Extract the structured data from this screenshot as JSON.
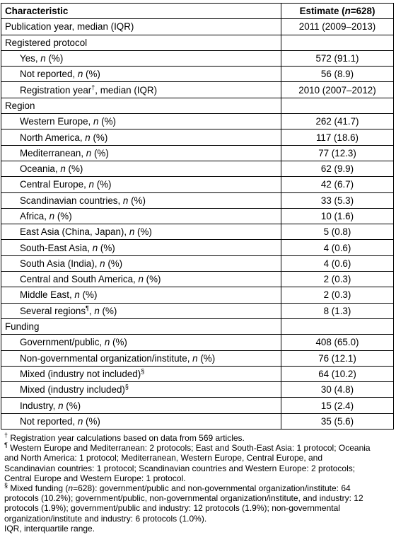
{
  "table": {
    "header": [
      "Characteristic",
      "Estimate (n=628)"
    ],
    "rows": [
      {
        "label": "Publication year, median (IQR)",
        "value": "2011 (2009–2013)"
      },
      {
        "label": "Registered protocol",
        "children": [
          {
            "label": "Yes, n (%)",
            "value": "572 (91.1)"
          },
          {
            "label": "Not reported, n (%)",
            "value": "56 (8.9)"
          },
          {
            "label": "Registration year†, median (IQR)",
            "value": "2010 (2007–2012)"
          }
        ]
      },
      {
        "label": "Region",
        "children": [
          {
            "label": "Western Europe, n (%)",
            "value": "262 (41.7)"
          },
          {
            "label": "North America, n (%)",
            "value": "117 (18.6)"
          },
          {
            "label": "Mediterranean, n (%)",
            "value": "77 (12.3)"
          },
          {
            "label": "Oceania, n (%)",
            "value": "62 (9.9)"
          },
          {
            "label": "Central Europe, n (%)",
            "value": "42 (6.7)"
          },
          {
            "label": "Scandinavian countries, n (%)",
            "value": "33 (5.3)"
          },
          {
            "label": "Africa, n (%)",
            "value": "10 (1.6)"
          },
          {
            "label": "East Asia (China, Japan), n (%)",
            "value": "5 (0.8)"
          },
          {
            "label": "South-East Asia, n (%)",
            "value": "4 (0.6)"
          },
          {
            "label": "South Asia (India), n (%)",
            "value": "4 (0.6)"
          },
          {
            "label": "Central and South America, n (%)",
            "value": "2 (0.3)"
          },
          {
            "label": "Middle East, n (%)",
            "value": "2 (0.3)"
          },
          {
            "label": "Several regions¶, n (%)",
            "value": "8 (1.3)"
          }
        ]
      },
      {
        "label": "Funding",
        "children": [
          {
            "label": "Government/public, n (%)",
            "value": "408 (65.0)"
          },
          {
            "label": "Non-governmental organization/institute, n (%)",
            "value": "76 (12.1)"
          },
          {
            "label": "Mixed (industry not included)§",
            "value": "64 (10.2)"
          },
          {
            "label": "Mixed (industry included)§",
            "value": "30 (4.8)"
          },
          {
            "label": "Industry, n (%)",
            "value": "15 (2.4)"
          },
          {
            "label": "Not reported, n (%)",
            "value": "35 (5.6)"
          }
        ]
      }
    ]
  },
  "footnotes": [
    "† Registration year calculations based on data from 569 articles.",
    "¶ Western Europe and Mediterranean: 2 protocols; East and South-East Asia: 1 protocol; Oceania and North America: 1 protocol; Mediterranean, Western Europe, Central Europe, and Scandinavian countries: 1 protocol; Scandinavian countries and Western Europe: 2 protocols; Central Europe and Western Europe: 1 protocol.",
    "§ Mixed funding (n=628): government/public and non-governmental organization/institute: 64 protocols (10.2%); government/public, non-governmental organization/institute, and industry: 12 protocols (1.9%); government/public and industry: 12 protocols (1.9%); non-governmental organization/institute and industry: 6 protocols (1.0%).",
    "IQR, interquartile range."
  ]
}
